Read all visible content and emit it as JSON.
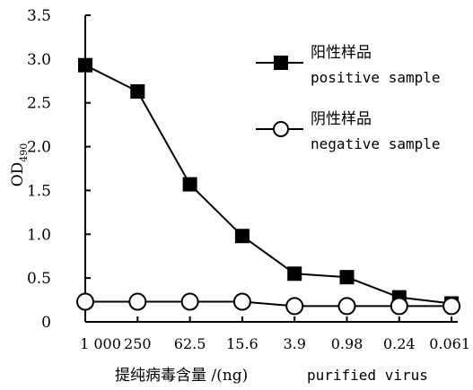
{
  "chart_data": {
    "type": "line",
    "categories": [
      "1 000",
      "250",
      "62.5",
      "15.6",
      "3.9",
      "0.98",
      "0.24",
      "0.061"
    ],
    "series": [
      {
        "name": "阳性样品 positive sample",
        "name_cn": "阳性样品",
        "name_en": "positive sample",
        "marker": "filled-square",
        "values": [
          2.93,
          2.63,
          1.57,
          0.98,
          0.55,
          0.51,
          0.28,
          0.21
        ]
      },
      {
        "name": "阴性样品 negative sample",
        "name_cn": "阴性样品",
        "name_en": "negative sample",
        "marker": "open-circle",
        "values": [
          0.23,
          0.23,
          0.23,
          0.23,
          0.18,
          0.18,
          0.18,
          0.18
        ]
      }
    ],
    "y_ticks": [
      "0",
      "0.5",
      "1.0",
      "1.5",
      "2.0",
      "2.5",
      "3.0",
      "3.5"
    ],
    "ylim": [
      0,
      3.5
    ],
    "ylabel_main": "OD",
    "ylabel_sub": "490",
    "xlabel_cn": "提纯病毒含量 /(ng)",
    "xlabel_en": "purified virus",
    "grid": false,
    "legend_position": "top-right"
  }
}
